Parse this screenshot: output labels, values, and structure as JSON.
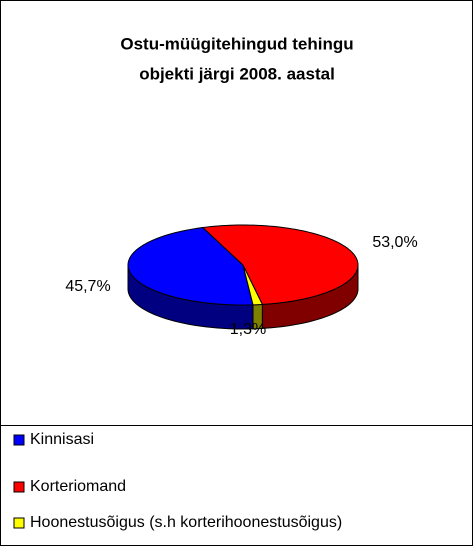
{
  "chart_data": {
    "type": "pie3d",
    "title": [
      "Ostu-müügitehingud tehingu",
      "objekti järgi 2008. aastal"
    ],
    "categories": [
      "Kinnisasi",
      "Korteriomand",
      "Hoonestusõigus (s.h korterihoonestusõigus)"
    ],
    "values": [
      45.7,
      53.0,
      1.3
    ],
    "value_labels": [
      "45,7%",
      "53,0%",
      "1,3%"
    ],
    "colors": [
      "#0000ff",
      "#ff0000",
      "#ffff00"
    ],
    "side_colors": [
      "#000080",
      "#800000",
      "#808000"
    ],
    "legend": "bottom"
  }
}
